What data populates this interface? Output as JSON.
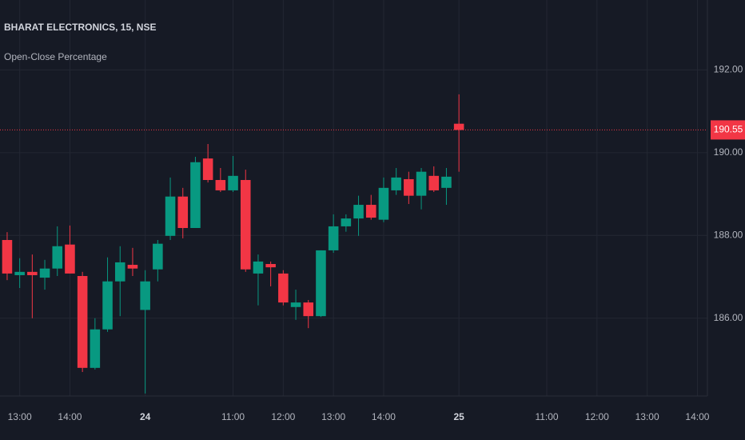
{
  "chart_data": {
    "type": "candlestick",
    "title": "BHARAT ELECTRONICS, 15, NSE",
    "subtitle": "Open-Close Percentage",
    "x": [
      0,
      1,
      2,
      3,
      4,
      5,
      6,
      7,
      8,
      9,
      10,
      11,
      12,
      13,
      14,
      15,
      16,
      17,
      18,
      19,
      20,
      21,
      22,
      23,
      24,
      25,
      26,
      27,
      28,
      29,
      30,
      31,
      32,
      33,
      34,
      35,
      36
    ],
    "open": [
      187.89,
      187.04,
      187.12,
      186.98,
      187.2,
      187.78,
      187.02,
      184.8,
      185.73,
      186.89,
      187.29,
      186.2,
      187.18,
      187.99,
      188.94,
      188.18,
      189.86,
      189.34,
      189.09,
      189.34,
      187.08,
      187.31,
      187.08,
      186.27,
      186.38,
      186.05,
      187.64,
      188.22,
      188.41,
      188.74,
      188.38,
      189.09,
      189.36,
      188.96,
      189.44,
      189.15,
      190.7
    ],
    "high": [
      188.08,
      187.45,
      187.54,
      187.41,
      188.22,
      188.24,
      187.12,
      186.0,
      187.47,
      187.74,
      187.7,
      187.16,
      187.89,
      189.4,
      189.15,
      189.9,
      190.21,
      189.63,
      189.92,
      189.59,
      187.54,
      187.37,
      187.16,
      186.69,
      186.44,
      187.64,
      188.51,
      188.51,
      188.96,
      188.98,
      189.4,
      189.63,
      189.54,
      189.63,
      189.67,
      189.63,
      191.41
    ],
    "low": [
      186.92,
      186.73,
      186.0,
      186.69,
      187.02,
      187.08,
      184.7,
      184.76,
      185.67,
      186.05,
      187.02,
      184.18,
      186.89,
      187.89,
      187.93,
      188.18,
      189.28,
      189.05,
      189.05,
      187.12,
      186.31,
      186.77,
      186.31,
      185.96,
      185.76,
      186.03,
      187.58,
      188.09,
      187.99,
      188.38,
      188.32,
      188.98,
      188.76,
      188.63,
      189.05,
      188.74,
      189.54
    ],
    "close": [
      187.08,
      187.12,
      187.04,
      187.2,
      187.74,
      187.08,
      184.8,
      185.73,
      186.89,
      187.35,
      187.2,
      186.89,
      187.8,
      188.94,
      188.18,
      189.77,
      189.34,
      189.09,
      189.44,
      187.18,
      187.37,
      187.23,
      186.38,
      186.38,
      186.05,
      187.64,
      188.22,
      188.41,
      188.74,
      188.43,
      189.15,
      189.4,
      188.96,
      189.54,
      189.09,
      189.42,
      190.55
    ],
    "up_color": "#089981",
    "down_color": "#f23645",
    "xlim": [
      -0.57,
      55.8
    ],
    "xticks": [
      {
        "value": 1,
        "label": "13:00"
      },
      {
        "value": 5,
        "label": "14:00"
      },
      {
        "value": 11,
        "label": "24"
      },
      {
        "value": 18,
        "label": "11:00"
      },
      {
        "value": 22,
        "label": "12:00"
      },
      {
        "value": 26,
        "label": "13:00"
      },
      {
        "value": 30,
        "label": "14:00"
      },
      {
        "value": 36,
        "label": "25"
      },
      {
        "value": 43,
        "label": "11:00"
      },
      {
        "value": 47,
        "label": "12:00"
      },
      {
        "value": 51,
        "label": "13:00"
      },
      {
        "value": 55,
        "label": "14:00"
      }
    ],
    "ylim": [
      184.12,
      193.69
    ],
    "yticks": [
      {
        "value": 186,
        "label": "186.00"
      },
      {
        "value": 188,
        "label": "188.00"
      },
      {
        "value": 190,
        "label": "190.00"
      },
      {
        "value": 192,
        "label": "192.00"
      }
    ],
    "grid": true,
    "last_price": 190.55,
    "last_price_color": "#f23645"
  }
}
